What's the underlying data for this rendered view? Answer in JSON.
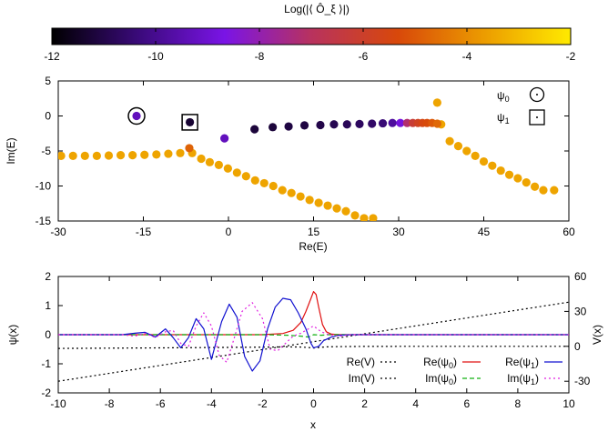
{
  "chart_data": [
    {
      "type": "heatmap",
      "role": "colorbar",
      "title": "Log(|⟨ Ô_ξ ⟩|)",
      "range": [
        -12,
        -2
      ],
      "ticks": [
        "-12",
        "-10",
        "-8",
        "-6",
        "-4",
        "-2"
      ],
      "palette": [
        "#000000",
        "#3a0a7a",
        "#7a14e6",
        "#b8325e",
        "#d8480a",
        "#ec9c00",
        "#ffea00"
      ]
    },
    {
      "type": "scatter",
      "xlabel": "Re(E)",
      "ylabel": "Im(E)",
      "xlim": [
        -30,
        60
      ],
      "ylim": [
        -15,
        5
      ],
      "xticks": [
        "-30",
        "-15",
        "0",
        "15",
        "30",
        "45",
        "60"
      ],
      "yticks": [
        "-15",
        "-10",
        "-5",
        "0",
        "5"
      ],
      "legend": {
        "position": "top-right",
        "entries": [
          {
            "label_main": "ψ",
            "label_sub": "0",
            "marker": "circle"
          },
          {
            "label_main": "ψ",
            "label_sub": "1",
            "marker": "square"
          }
        ]
      },
      "series": [
        {
          "values_x": [
            -29.5,
            -27.4,
            -25.3,
            -23.2,
            -21.1,
            -19,
            -16.9,
            -14.8,
            -12.7,
            -10.6,
            -8.5,
            -6.4,
            -4.8,
            -3.3,
            -1.7,
            -0.1,
            1.5,
            3.1,
            4.7,
            6.3,
            7.9,
            9.5,
            11.1,
            12.7,
            14.3,
            15.9,
            17.5,
            19.1,
            20.7,
            22.3,
            23.9,
            25.5,
            36.8,
            37.5,
            39,
            40.5,
            42,
            43.5,
            45,
            46.5,
            48,
            49.5,
            51,
            52.5,
            54,
            55.5,
            57.4
          ],
          "values_y": [
            -5.7,
            -5.7,
            -5.7,
            -5.7,
            -5.65,
            -5.6,
            -5.6,
            -5.55,
            -5.5,
            -5.4,
            -5.3,
            -5.3,
            -6.1,
            -6.6,
            -7,
            -7.5,
            -8.1,
            -8.6,
            -9.2,
            -9.6,
            -10,
            -10.6,
            -11,
            -11.5,
            -12,
            -12.4,
            -12.8,
            -13.2,
            -13.6,
            -14.2,
            -14.6,
            -14.6,
            1.9,
            -1.2,
            -3.6,
            -4.3,
            -5.0,
            -5.7,
            -6.5,
            -7.1,
            -7.8,
            -8.4,
            -8.9,
            -9.5,
            -10.1,
            -10.6,
            -10.6
          ],
          "values_c": [
            -3.5,
            -3.5,
            -3.5,
            -3.5,
            -3.5,
            -3.5,
            -3.5,
            -3.5,
            -3.5,
            -3.5,
            -3.5,
            -3.5,
            -3.5,
            -3.5,
            -3.5,
            -3.5,
            -3.5,
            -3.5,
            -3.5,
            -3.5,
            -3.5,
            -3.5,
            -3.5,
            -3.5,
            -3.5,
            -3.5,
            -3.5,
            -3.5,
            -3.5,
            -3.5,
            -3.5,
            -3.5,
            -3.5,
            -3.5,
            -3.5,
            -3.5,
            -3.5,
            -3.5,
            -3.5,
            -3.5,
            -3.5,
            -3.5,
            -3.5,
            -3.5,
            -3.5,
            -3.5,
            -3.5
          ]
        },
        {
          "values_x": [
            -16.2,
            -6.8,
            -0.7,
            4.6,
            7.8,
            10.6,
            13.4,
            16.2,
            18.6,
            20.9,
            23.1,
            25.3,
            27.2,
            28.9,
            30.3,
            31.5,
            32.5,
            33.4,
            34.2,
            35,
            35.9,
            36.8,
            -6.9
          ],
          "values_y": [
            0,
            -0.9,
            -3.2,
            -1.9,
            -1.6,
            -1.5,
            -1.35,
            -1.3,
            -1.2,
            -1.2,
            -1.15,
            -1.1,
            -1.05,
            -1.0,
            -1.0,
            -1.0,
            -1.0,
            -1.0,
            -1.0,
            -1.0,
            -1.0,
            -1.1,
            -4.6
          ],
          "values_c": [
            -9.3,
            -11.3,
            -9.3,
            -11.2,
            -11.2,
            -11.1,
            -11.1,
            -11.0,
            -10.9,
            -10.8,
            -10.7,
            -10.6,
            -10.4,
            -9.8,
            -8.8,
            -7.2,
            -6.2,
            -5.8,
            -5.5,
            -5.3,
            -5.0,
            -4.7,
            -4.8
          ]
        }
      ]
    },
    {
      "type": "line",
      "xlabel": "x",
      "ylabel": "ψ(x)",
      "y2label": "V(x)",
      "xlim": [
        -10,
        10
      ],
      "ylim": [
        -2,
        2
      ],
      "y2lim": [
        -40,
        60
      ],
      "xticks": [
        "-10",
        "-8",
        "-6",
        "-4",
        "-2",
        "0",
        "2",
        "4",
        "6",
        "8",
        "10"
      ],
      "yticks": [
        "-2",
        "-1",
        "0",
        "1",
        "2"
      ],
      "y2ticks": [
        "-30",
        "0",
        "30",
        "60"
      ],
      "legend": {
        "position": "bottom-right",
        "entries": [
          {
            "label": "Re(V)",
            "color": "#000000",
            "dash": "dotted"
          },
          {
            "label": "Re(ψ0)",
            "label_main": "Re(ψ",
            "label_sub": "0",
            "label_end": ")",
            "color": "#e01010",
            "dash": "solid"
          },
          {
            "label": "Re(ψ1)",
            "label_main": "Re(ψ",
            "label_sub": "1",
            "label_end": ")",
            "color": "#1010d0",
            "dash": "solid"
          },
          {
            "label": "Im(V)",
            "color": "#000000",
            "dash": "dotted"
          },
          {
            "label": "Im(ψ0)",
            "label_main": "Im(ψ",
            "label_sub": "0",
            "label_end": ")",
            "color": "#10b010",
            "dash": "dashed"
          },
          {
            "label": "Im(ψ1)",
            "label_main": "Im(ψ",
            "label_sub": "1",
            "label_end": ")",
            "color": "#e020e0",
            "dash": "dotted"
          }
        ]
      },
      "series": [
        {
          "name": "Re(V)",
          "axis": "y2",
          "x": [
            -10,
            10
          ],
          "values": [
            -30,
            38
          ]
        },
        {
          "name": "Im(V)",
          "axis": "y2",
          "x": [
            -10,
            -8,
            -6,
            -4,
            -2,
            -1,
            -0.5,
            -0.2,
            0,
            0.2,
            0.5,
            1,
            2,
            4,
            6,
            8,
            10
          ],
          "values": [
            -1.8,
            -1.6,
            -1.3,
            -1.0,
            -0.7,
            -0.5,
            -0.6,
            -1.0,
            -1.5,
            -1.0,
            -0.5,
            -0.2,
            -0.05,
            0,
            0,
            0,
            0
          ]
        },
        {
          "name": "Re(ψ0)",
          "x": [
            -10,
            -2,
            -1.2,
            -0.8,
            -0.5,
            -0.3,
            -0.1,
            0,
            0.1,
            0.2,
            0.35,
            0.5,
            0.7,
            1.0,
            2,
            10
          ],
          "values": [
            0,
            0,
            0.04,
            0.15,
            0.42,
            0.8,
            1.25,
            1.48,
            1.38,
            0.95,
            0.35,
            0.1,
            0.02,
            0,
            0,
            0
          ]
        },
        {
          "name": "Im(ψ0)",
          "x": [
            -10,
            -2,
            -1,
            -0.5,
            -0.2,
            0,
            0.3,
            0.6,
            1,
            10
          ],
          "values": [
            0,
            0,
            -0.02,
            -0.05,
            -0.08,
            0,
            -0.02,
            0,
            0,
            0
          ]
        },
        {
          "name": "Re(ψ1)",
          "x": [
            -10,
            -7.5,
            -7,
            -6.6,
            -6.2,
            -5.8,
            -5.5,
            -5.2,
            -4.9,
            -4.6,
            -4.3,
            -4.0,
            -3.6,
            -3.3,
            -3.0,
            -2.7,
            -2.4,
            -2.1,
            -1.8,
            -1.5,
            -1.2,
            -0.9,
            -0.6,
            -0.3,
            -0.1,
            0,
            0.2,
            0.4,
            0.7,
            1.0,
            1.5,
            2,
            10
          ],
          "values": [
            0,
            0,
            0.05,
            0.08,
            -0.08,
            0.2,
            -0.1,
            -0.45,
            -0.1,
            0.55,
            0.2,
            -0.85,
            0.45,
            1.05,
            0.6,
            -0.75,
            -1.25,
            -0.9,
            0.2,
            0.95,
            1.25,
            1.2,
            0.75,
            0.2,
            -0.3,
            -0.45,
            -0.4,
            -0.2,
            -0.08,
            -0.02,
            0,
            0,
            0
          ]
        },
        {
          "name": "Im(ψ1)",
          "x": [
            -10,
            -7.5,
            -7,
            -6.6,
            -6.2,
            -5.8,
            -5.5,
            -5.2,
            -4.9,
            -4.6,
            -4.3,
            -4.0,
            -3.7,
            -3.4,
            -3.1,
            -2.8,
            -2.4,
            -2.0,
            -1.7,
            -1.4,
            -1.1,
            -0.8,
            -0.5,
            -0.2,
            0,
            0.3,
            0.6,
            1.0,
            1.5,
            10
          ],
          "values": [
            0,
            0,
            -0.05,
            0.05,
            -0.1,
            0.1,
            0.15,
            -0.3,
            -0.4,
            0.3,
            0.75,
            0.3,
            -0.7,
            -0.95,
            -0.1,
            0.8,
            1.1,
            0.55,
            -0.5,
            -0.55,
            -0.3,
            -0.05,
            0.05,
            0.2,
            0.3,
            0.1,
            0.0,
            -0.05,
            0,
            0
          ]
        }
      ]
    }
  ]
}
